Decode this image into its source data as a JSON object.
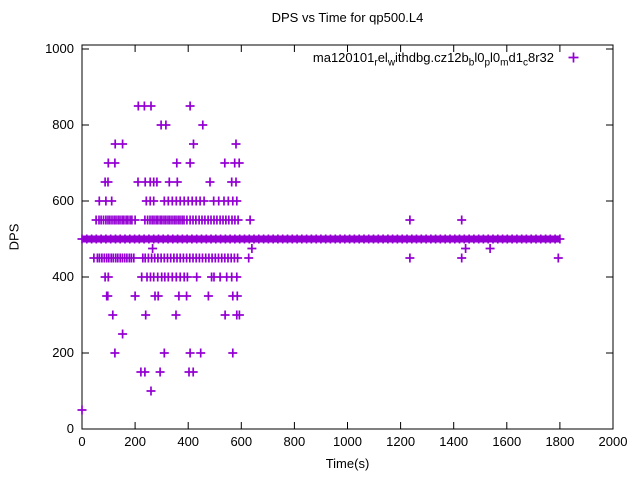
{
  "window": {
    "background": "#ffffff",
    "foreground": "#000000"
  },
  "chart_data": {
    "type": "scatter",
    "title": "DPS vs Time for qp500.L4",
    "xlabel": "Time(s)",
    "ylabel": "DPS",
    "xlim": [
      0,
      2000
    ],
    "ylim": [
      0,
      1010
    ],
    "xticks": [
      0,
      200,
      400,
      600,
      800,
      1000,
      1200,
      1400,
      1600,
      1800,
      2000
    ],
    "yticks": [
      0,
      200,
      400,
      600,
      800,
      1000
    ],
    "grid": false,
    "legend_position": "top-right-inside",
    "marker": {
      "shape": "plus",
      "color": "#9400d3",
      "size": 9
    },
    "legend_label_plain": "ma120101_rel_withdbg.cz12b_bl0_pl0_md1_c8r32",
    "legend_segments": [
      {
        "text": "ma120101"
      },
      {
        "sub": "r"
      },
      {
        "text": "el"
      },
      {
        "sub": "w"
      },
      {
        "text": "ithdbg.cz12b"
      },
      {
        "sub": "b"
      },
      {
        "text": "l0"
      },
      {
        "sub": "p"
      },
      {
        "text": "l0"
      },
      {
        "sub": "m"
      },
      {
        "text": "d1"
      },
      {
        "sub": "c"
      },
      {
        "text": "8r32"
      }
    ],
    "band": {
      "dps": 500,
      "t_start": 0,
      "t_end": 1800
    },
    "series": [
      {
        "dps": 850,
        "times": [
          212,
          235,
          260,
          407
        ]
      },
      {
        "dps": 800,
        "times": [
          298,
          316,
          455
        ]
      },
      {
        "dps": 750,
        "times": [
          125,
          153,
          420,
          580
        ]
      },
      {
        "dps": 700,
        "times": [
          99,
          124,
          357,
          407,
          538,
          575,
          592
        ]
      },
      {
        "dps": 650,
        "times": [
          87,
          98,
          211,
          238,
          257,
          270,
          282,
          329,
          359,
          482,
          564,
          580
        ]
      },
      {
        "dps": 600,
        "times": [
          65,
          90,
          112,
          242,
          257,
          270,
          310,
          325,
          340,
          355,
          370,
          385,
          400,
          415,
          430,
          445,
          460,
          496,
          515,
          535,
          551,
          568,
          583
        ]
      },
      {
        "dps": 550,
        "times": [
          53,
          64,
          72,
          81,
          90,
          98,
          105,
          113,
          121,
          128,
          136,
          143,
          151,
          158,
          166,
          173,
          181,
          188,
          200,
          237,
          247,
          256,
          264,
          271,
          279,
          286,
          294,
          301,
          309,
          316,
          324,
          331,
          339,
          347,
          354,
          362,
          369,
          377,
          384,
          395,
          407,
          418,
          429,
          441,
          452,
          463,
          475,
          486,
          497,
          508,
          520,
          531,
          542,
          553,
          565,
          576,
          588,
          633,
          1235,
          1430
        ]
      },
      {
        "dps": 475,
        "times": [
          266,
          640,
          1445,
          1537
        ]
      },
      {
        "dps": 450,
        "times": [
          45,
          58,
          66,
          75,
          84,
          93,
          101,
          110,
          118,
          127,
          135,
          144,
          152,
          161,
          169,
          178,
          186,
          195,
          229,
          238,
          250,
          262,
          274,
          286,
          298,
          310,
          322,
          334,
          346,
          358,
          370,
          382,
          394,
          406,
          418,
          430,
          442,
          454,
          466,
          478,
          490,
          502,
          514,
          526,
          538,
          550,
          562,
          574,
          586,
          628,
          1235,
          1430,
          1794
        ]
      },
      {
        "dps": 400,
        "times": [
          87,
          99,
          225,
          245,
          258,
          270,
          285,
          300,
          312,
          325,
          340,
          355,
          370,
          385,
          397,
          432,
          488,
          497,
          520,
          545,
          564,
          583
        ]
      },
      {
        "dps": 350,
        "times": [
          93,
          97,
          200,
          275,
          287,
          365,
          394,
          476,
          568,
          585
        ]
      },
      {
        "dps": 300,
        "times": [
          116,
          240,
          354,
          539,
          583,
          593
        ]
      },
      {
        "dps": 250,
        "times": [
          153
        ]
      },
      {
        "dps": 200,
        "times": [
          124,
          310,
          407,
          447,
          568
        ]
      },
      {
        "dps": 150,
        "times": [
          222,
          237,
          294,
          403,
          419
        ]
      },
      {
        "dps": 100,
        "times": [
          260
        ]
      },
      {
        "dps": 50,
        "times": [
          0
        ]
      }
    ]
  }
}
